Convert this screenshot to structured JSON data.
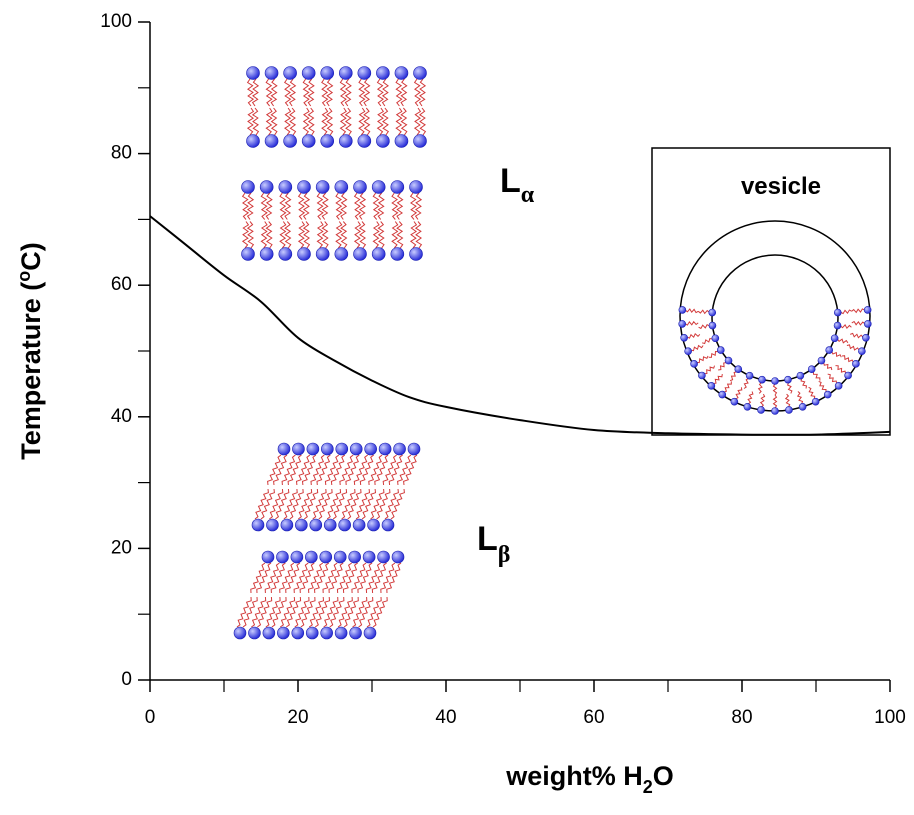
{
  "chart_data": {
    "type": "line",
    "xlabel": [
      "weight% H",
      "2",
      "O"
    ],
    "ylabel": [
      "Temperature (",
      "o",
      "C)"
    ],
    "x": [
      0,
      5,
      10,
      15,
      20,
      25,
      30,
      35,
      40,
      50,
      60,
      70,
      80,
      90,
      100
    ],
    "values": [
      70.5,
      66,
      61.5,
      57.5,
      52,
      48.5,
      45.5,
      43,
      41.5,
      39.5,
      38,
      37.5,
      37.3,
      37.3,
      37.7
    ],
    "color": "#000000",
    "xlim": [
      0,
      100
    ],
    "ylim": [
      0,
      100
    ],
    "xticks": [
      0,
      20,
      40,
      60,
      80,
      100
    ],
    "yticks": [
      0,
      20,
      40,
      60,
      80,
      100
    ],
    "xticks_minor": [
      10,
      30,
      50,
      70,
      90
    ],
    "yticks_minor": [
      10,
      30,
      50,
      70,
      90
    ],
    "annotations": [
      {
        "text": "L",
        "subscript": "α"
      },
      {
        "text": "L",
        "subscript": "β"
      },
      {
        "text": "vesicle"
      }
    ]
  }
}
